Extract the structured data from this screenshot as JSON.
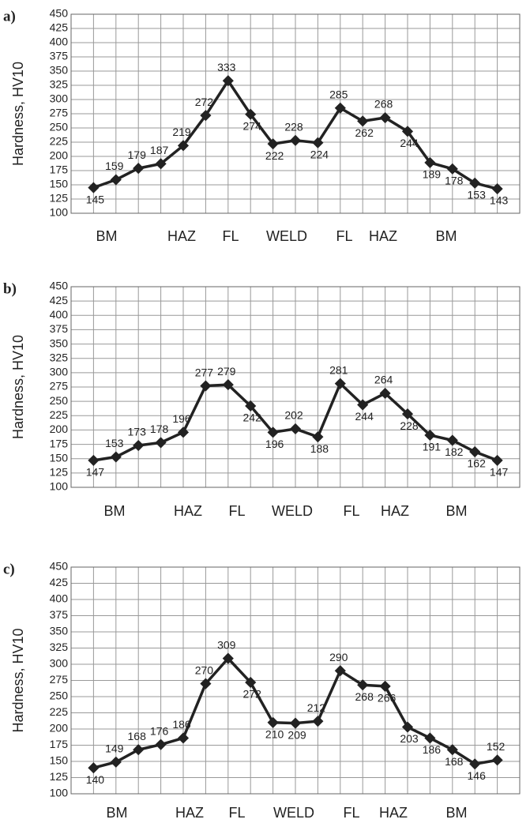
{
  "chart_data": [
    {
      "type": "line",
      "panel_label": "a)",
      "y_label": "Hardness, HV10",
      "values": [
        145,
        159,
        179,
        187,
        219,
        272,
        333,
        274,
        222,
        228,
        224,
        285,
        262,
        268,
        244,
        189,
        178,
        153,
        143
      ],
      "color": "#222222",
      "ylim": [
        100,
        450
      ],
      "yticks": [
        100,
        125,
        150,
        175,
        200,
        225,
        250,
        275,
        300,
        325,
        350,
        375,
        400,
        425,
        450
      ],
      "grid": true,
      "annotations": [
        "BM",
        "HAZ",
        "FL",
        "WELD",
        "FL",
        "HAZ",
        "BM"
      ]
    },
    {
      "type": "line",
      "panel_label": "b)",
      "y_label": "Hardness, HV10",
      "values": [
        147,
        153,
        173,
        178,
        196,
        277,
        279,
        242,
        196,
        202,
        188,
        281,
        244,
        264,
        228,
        191,
        182,
        162,
        147
      ],
      "color": "#222222",
      "ylim": [
        100,
        450
      ],
      "yticks": [
        100,
        125,
        150,
        175,
        200,
        225,
        250,
        275,
        300,
        325,
        350,
        375,
        400,
        425,
        450
      ],
      "grid": true,
      "annotations": [
        "BM",
        "HAZ",
        "FL",
        "WELD",
        "FL",
        "HAZ",
        "BM"
      ]
    },
    {
      "type": "line",
      "panel_label": "c)",
      "y_label": "Hardness, HV10",
      "values": [
        140,
        149,
        168,
        176,
        186,
        270,
        309,
        272,
        210,
        209,
        212,
        290,
        268,
        266,
        203,
        186,
        168,
        146,
        152
      ],
      "color": "#222222",
      "ylim": [
        100,
        450
      ],
      "yticks": [
        100,
        125,
        150,
        175,
        200,
        225,
        250,
        275,
        300,
        325,
        350,
        375,
        400,
        425,
        450
      ],
      "grid": true,
      "annotations": [
        "BM",
        "HAZ",
        "FL",
        "WELD",
        "FL",
        "HAZ",
        "BM"
      ]
    }
  ]
}
